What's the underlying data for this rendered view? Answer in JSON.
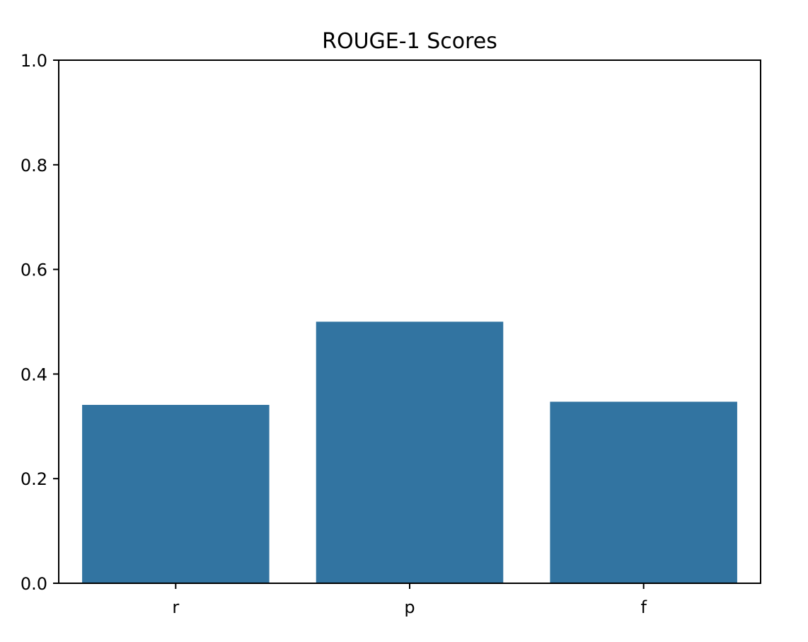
{
  "chart_data": {
    "type": "bar",
    "title": "ROUGE-1 Scores",
    "xlabel": "",
    "ylabel": "",
    "categories": [
      "r",
      "p",
      "f"
    ],
    "values": [
      0.341,
      0.5,
      0.347
    ],
    "ylim": [
      0,
      1.0
    ],
    "yticks": [
      "0.0",
      "0.2",
      "0.4",
      "0.6",
      "0.8",
      "1.0"
    ],
    "grid": false,
    "legend": "none",
    "bar_color": "#3274a1"
  }
}
